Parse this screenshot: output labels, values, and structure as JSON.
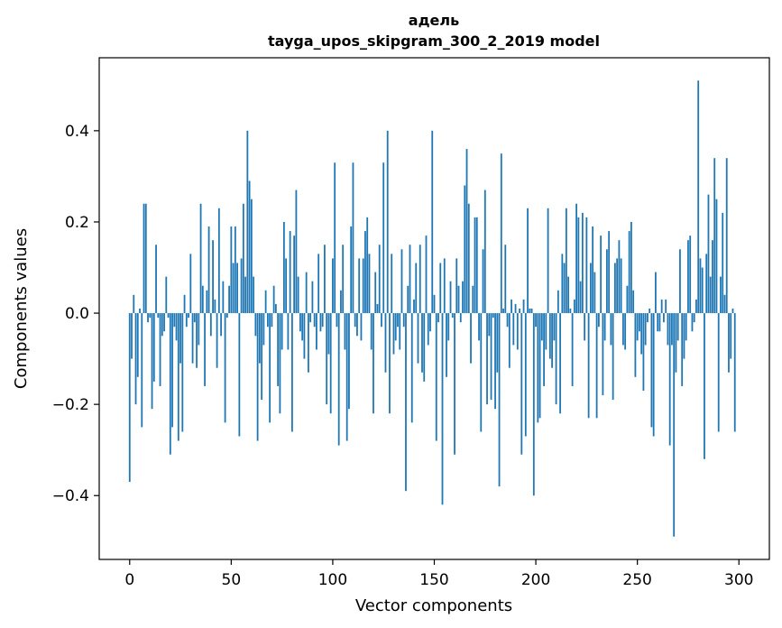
{
  "chart_data": {
    "type": "bar",
    "title": "адель",
    "subtitle": "tayga_upos_skipgram_300_2_2019 model",
    "xlabel": "Vector components",
    "ylabel": "Components values",
    "xlim": [
      -15,
      315
    ],
    "ylim": [
      -0.54,
      0.56
    ],
    "xticks": [
      0,
      50,
      100,
      150,
      200,
      250,
      300
    ],
    "yticks": [
      -0.4,
      -0.2,
      0.0,
      0.2,
      0.4
    ],
    "ytick_labels": [
      "−0.4",
      "−0.2",
      "0.0",
      "0.2",
      "0.4"
    ],
    "xtick_labels": [
      "0",
      "50",
      "100",
      "150",
      "200",
      "250",
      "300"
    ],
    "bar_color": "#1f77b4",
    "series": [
      {
        "name": "адель",
        "values": [
          -0.37,
          -0.1,
          0.04,
          -0.2,
          -0.14,
          0.01,
          -0.25,
          0.24,
          0.24,
          -0.02,
          -0.01,
          -0.21,
          -0.15,
          0.15,
          -0.01,
          -0.16,
          -0.05,
          -0.04,
          0.08,
          -0.01,
          -0.31,
          -0.25,
          -0.03,
          -0.06,
          -0.28,
          -0.11,
          -0.26,
          0.04,
          -0.03,
          -0.01,
          0.13,
          -0.11,
          -0.02,
          -0.12,
          -0.07,
          0.24,
          0.06,
          -0.16,
          0.05,
          0.19,
          -0.05,
          0.16,
          0.03,
          -0.12,
          0.23,
          -0.05,
          0.07,
          -0.24,
          -0.01,
          0.06,
          0.19,
          0.11,
          0.19,
          0.11,
          -0.27,
          0.12,
          0.24,
          0.08,
          0.4,
          0.29,
          0.25,
          0.08,
          -0.05,
          -0.28,
          -0.11,
          -0.19,
          -0.07,
          0.05,
          -0.03,
          -0.24,
          -0.03,
          0.06,
          0.02,
          -0.16,
          -0.22,
          -0.08,
          0.2,
          0.12,
          -0.08,
          0.18,
          -0.26,
          0.17,
          0.27,
          0.08,
          -0.04,
          -0.06,
          -0.1,
          0.09,
          -0.13,
          -0.02,
          0.07,
          -0.03,
          -0.08,
          0.13,
          -0.04,
          -0.03,
          0.15,
          -0.2,
          -0.09,
          -0.22,
          0.12,
          0.33,
          -0.03,
          -0.29,
          0.05,
          0.15,
          -0.08,
          -0.28,
          -0.21,
          0.19,
          0.33,
          -0.03,
          -0.05,
          0.12,
          -0.06,
          0.12,
          0.18,
          0.21,
          0.13,
          -0.08,
          -0.22,
          0.09,
          0.02,
          0.15,
          -0.03,
          0.33,
          -0.13,
          0.4,
          -0.22,
          0.13,
          -0.09,
          -0.06,
          -0.03,
          -0.08,
          0.14,
          -0.03,
          -0.39,
          0.06,
          0.15,
          -0.24,
          0.03,
          0.11,
          -0.11,
          0.15,
          -0.13,
          -0.15,
          0.17,
          -0.07,
          -0.04,
          0.4,
          0.04,
          -0.28,
          -0.02,
          0.11,
          -0.42,
          0.12,
          -0.14,
          -0.06,
          0.07,
          -0.01,
          -0.31,
          0.12,
          0.06,
          -0.02,
          0.07,
          0.28,
          0.36,
          0.24,
          -0.11,
          0.06,
          0.21,
          0.21,
          -0.06,
          -0.26,
          0.14,
          0.27,
          -0.2,
          -0.05,
          -0.19,
          -0.01,
          -0.21,
          -0.13,
          -0.38,
          0.35,
          0.01,
          0.15,
          -0.03,
          -0.12,
          0.03,
          -0.07,
          0.02,
          -0.08,
          0.01,
          -0.31,
          0.03,
          -0.27,
          0.23,
          0.01,
          0.01,
          -0.4,
          -0.03,
          -0.24,
          -0.23,
          -0.06,
          -0.16,
          -0.08,
          0.23,
          -0.1,
          -0.12,
          -0.06,
          -0.2,
          0.05,
          -0.22,
          0.13,
          0.11,
          0.23,
          0.08,
          0.01,
          -0.16,
          0.03,
          0.24,
          0.21,
          0.07,
          0.22,
          -0.06,
          0.21,
          -0.23,
          0.11,
          0.19,
          0.09,
          -0.23,
          -0.03,
          0.17,
          -0.18,
          -0.06,
          0.14,
          0.18,
          -0.07,
          -0.19,
          0.11,
          0.12,
          0.16,
          0.12,
          -0.07,
          -0.08,
          0.06,
          0.18,
          0.2,
          0.05,
          -0.14,
          -0.06,
          -0.04,
          -0.09,
          -0.17,
          -0.07,
          -0.02,
          0.01,
          -0.25,
          -0.27,
          0.09,
          -0.04,
          -0.04,
          0.03,
          -0.02,
          0.03,
          -0.07,
          -0.29,
          -0.07,
          -0.49,
          -0.13,
          -0.06,
          0.14,
          -0.16,
          -0.1,
          -0.06,
          0.16,
          0.17,
          -0.04,
          -0.02,
          0.03,
          0.51,
          0.12,
          0.1,
          -0.32,
          0.13,
          0.26,
          0.08,
          0.16,
          0.34,
          0.25,
          -0.26,
          0.08,
          0.22,
          0.04,
          0.34,
          -0.13,
          -0.1,
          0.01,
          -0.26
        ]
      }
    ]
  }
}
